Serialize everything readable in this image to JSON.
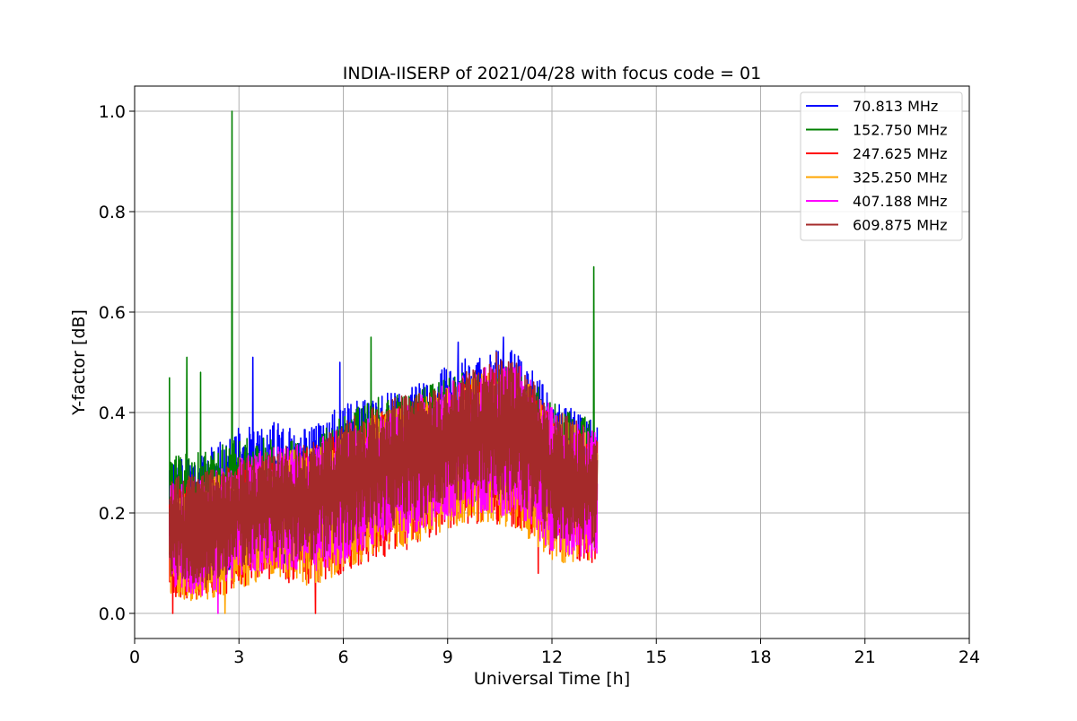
{
  "chart_data": {
    "type": "line",
    "title": "INDIA-IISERP of 2021/04/28 with focus code = 01",
    "xlabel": "Universal Time [h]",
    "ylabel": "Y-factor [dB]",
    "xlim": [
      0,
      24
    ],
    "ylim": [
      -0.05,
      1.05
    ],
    "xticks": [
      0,
      3,
      6,
      9,
      12,
      15,
      18,
      21,
      24
    ],
    "xtick_labels": [
      "0",
      "3",
      "6",
      "9",
      "12",
      "15",
      "18",
      "21",
      "24"
    ],
    "yticks": [
      0.0,
      0.2,
      0.4,
      0.6,
      0.8,
      1.0
    ],
    "ytick_labels": [
      "0.0",
      "0.2",
      "0.4",
      "0.6",
      "0.8",
      "1.0"
    ],
    "grid": true,
    "legend_position": "top-right",
    "data_x_range": [
      1.0,
      13.3
    ],
    "series": [
      {
        "name": " 70.813 MHz",
        "color": "#0000ff",
        "envelope_x": [
          1.0,
          2.0,
          3.0,
          4.0,
          5.0,
          6.0,
          7.0,
          8.0,
          9.0,
          10.0,
          11.0,
          12.0,
          13.3
        ],
        "envelope_lo": [
          0.1,
          0.06,
          0.09,
          0.1,
          0.1,
          0.12,
          0.16,
          0.18,
          0.22,
          0.22,
          0.22,
          0.17,
          0.14
        ],
        "envelope_hi": [
          0.3,
          0.32,
          0.37,
          0.38,
          0.37,
          0.42,
          0.44,
          0.45,
          0.5,
          0.52,
          0.53,
          0.43,
          0.38
        ],
        "peaks": [
          {
            "x": 3.4,
            "y": 0.51
          },
          {
            "x": 5.9,
            "y": 0.5
          },
          {
            "x": 9.3,
            "y": 0.54
          },
          {
            "x": 10.6,
            "y": 0.55
          }
        ]
      },
      {
        "name": "152.750 MHz",
        "color": "#008000",
        "envelope_x": [
          1.0,
          2.0,
          3.0,
          4.0,
          5.0,
          6.0,
          7.0,
          8.0,
          9.0,
          10.0,
          11.0,
          12.0,
          13.3
        ],
        "envelope_lo": [
          0.1,
          0.07,
          0.1,
          0.1,
          0.1,
          0.12,
          0.16,
          0.18,
          0.21,
          0.22,
          0.22,
          0.17,
          0.14
        ],
        "envelope_hi": [
          0.33,
          0.32,
          0.35,
          0.35,
          0.34,
          0.4,
          0.43,
          0.44,
          0.47,
          0.49,
          0.5,
          0.42,
          0.38
        ],
        "peaks": [
          {
            "x": 1.0,
            "y": 0.47
          },
          {
            "x": 1.5,
            "y": 0.51
          },
          {
            "x": 1.9,
            "y": 0.48
          },
          {
            "x": 2.8,
            "y": 1.0
          },
          {
            "x": 6.8,
            "y": 0.55
          },
          {
            "x": 13.2,
            "y": 0.69
          }
        ]
      },
      {
        "name": "247.625 MHz",
        "color": "#ff0000",
        "envelope_x": [
          1.0,
          2.0,
          3.0,
          4.0,
          5.0,
          6.0,
          7.0,
          8.0,
          9.0,
          10.0,
          11.0,
          12.0,
          13.3
        ],
        "envelope_lo": [
          0.03,
          0.02,
          0.05,
          0.07,
          0.05,
          0.08,
          0.11,
          0.13,
          0.17,
          0.18,
          0.17,
          0.11,
          0.1
        ],
        "envelope_hi": [
          0.25,
          0.26,
          0.3,
          0.32,
          0.33,
          0.36,
          0.4,
          0.42,
          0.45,
          0.48,
          0.49,
          0.4,
          0.35
        ],
        "peaks": [
          {
            "x": 1.1,
            "y": 0.0
          },
          {
            "x": 5.2,
            "y": 0.0
          },
          {
            "x": 11.6,
            "y": 0.08
          }
        ]
      },
      {
        "name": "325.250 MHz",
        "color": "#ffa500",
        "envelope_x": [
          1.0,
          2.0,
          3.0,
          4.0,
          5.0,
          6.0,
          7.0,
          8.0,
          9.0,
          10.0,
          11.0,
          12.0,
          13.3
        ],
        "envelope_lo": [
          0.03,
          0.02,
          0.05,
          0.07,
          0.05,
          0.08,
          0.12,
          0.13,
          0.17,
          0.18,
          0.17,
          0.1,
          0.1
        ],
        "envelope_hi": [
          0.25,
          0.26,
          0.3,
          0.32,
          0.33,
          0.36,
          0.4,
          0.42,
          0.45,
          0.48,
          0.49,
          0.4,
          0.35
        ],
        "peaks": [
          {
            "x": 2.6,
            "y": 0.0
          }
        ]
      },
      {
        "name": "407.188 MHz",
        "color": "#ff00ff",
        "envelope_x": [
          1.0,
          2.0,
          3.0,
          4.0,
          5.0,
          6.0,
          7.0,
          8.0,
          9.0,
          10.0,
          11.0,
          12.0,
          13.3
        ],
        "envelope_lo": [
          0.05,
          0.03,
          0.07,
          0.09,
          0.08,
          0.1,
          0.14,
          0.15,
          0.19,
          0.2,
          0.19,
          0.12,
          0.11
        ],
        "envelope_hi": [
          0.26,
          0.27,
          0.31,
          0.33,
          0.34,
          0.37,
          0.41,
          0.43,
          0.46,
          0.49,
          0.5,
          0.41,
          0.36
        ],
        "peaks": [
          {
            "x": 2.4,
            "y": 0.0
          }
        ]
      },
      {
        "name": "609.875 MHz",
        "color": "#a52a2a",
        "envelope_x": [
          1.0,
          2.0,
          3.0,
          4.0,
          5.0,
          6.0,
          7.0,
          8.0,
          9.0,
          10.0,
          11.0,
          12.0,
          13.3
        ],
        "envelope_lo": [
          0.07,
          0.05,
          0.09,
          0.11,
          0.1,
          0.13,
          0.17,
          0.18,
          0.22,
          0.23,
          0.22,
          0.15,
          0.13
        ],
        "envelope_hi": [
          0.27,
          0.28,
          0.31,
          0.33,
          0.34,
          0.38,
          0.42,
          0.44,
          0.46,
          0.5,
          0.51,
          0.41,
          0.36
        ],
        "peaks": [
          {
            "x": 10.4,
            "y": 0.52
          }
        ]
      }
    ]
  }
}
